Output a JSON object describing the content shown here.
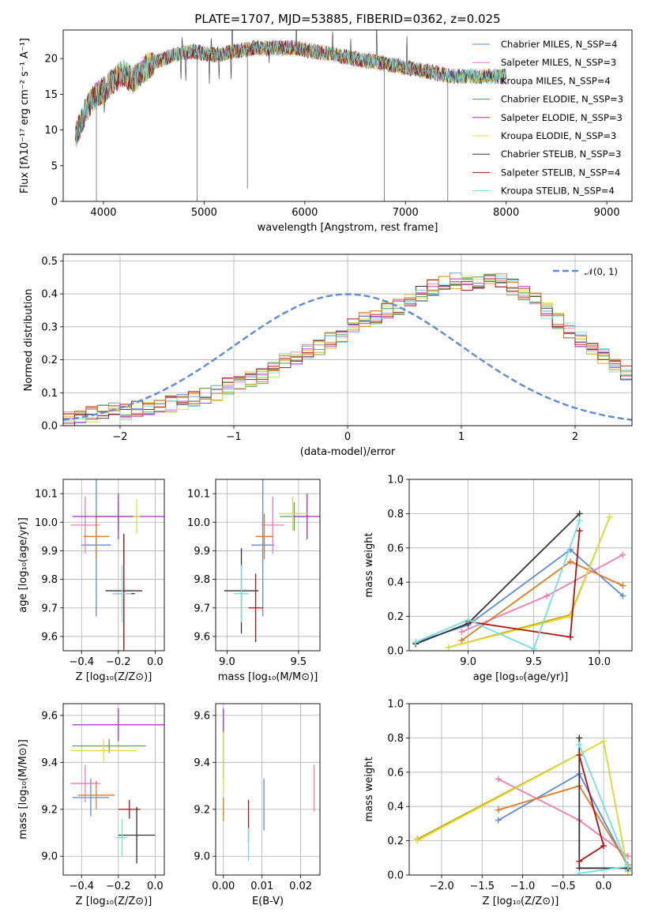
{
  "colors": {
    "Chabrier MILES": "#5b8bd8",
    "Salpeter MILES": "#f07ab0",
    "Kroupa MILES": "#d8a600",
    "Chabrier ELODIE": "#5aa05a",
    "Salpeter ELODIE": "#a030c0",
    "Kroupa ELODIE": "#d8e040",
    "Chabrier STELIB": "#333333",
    "Salpeter STELIB": "#b01010",
    "Kroupa STELIB": "#70e0e0",
    "extra_orange": "#e07a20",
    "normal": "#5b8bd8"
  },
  "chart_data": [
    {
      "type": "line",
      "title": "PLATE=1707, MJD=53885, FIBERID=0362, z=0.025",
      "xlabel": "wavelength [Angstrom, rest frame]",
      "ylabel": "Flux [fλ10⁻¹⁷ erg cm⁻² s⁻¹ A⁻¹]",
      "xlim": [
        3600,
        9250
      ],
      "ylim": [
        0,
        24
      ],
      "xticks": [
        "4000",
        "5000",
        "6000",
        "7000",
        "8000",
        "9000"
      ],
      "yticks": [
        "0",
        "5",
        "10",
        "15",
        "20"
      ],
      "legend_position": "top-right",
      "legend": [
        "Chabrier MILES, N_SSP=4",
        "Salpeter MILES, N_SSP=3",
        "Kroupa MILES, N_SSP=4",
        "Chabrier ELODIE, N_SSP=3",
        "Salpeter ELODIE, N_SSP=3",
        "Kroupa ELODIE, N_SSP=3",
        "Chabrier STELIB, N_SSP=3",
        "Salpeter STELIB, N_SSP=4",
        "Kroupa STELIB, N_SSP=4"
      ],
      "continuum": {
        "x": [
          3720,
          3800,
          3900,
          4000,
          4100,
          4200,
          4300,
          4400,
          4500,
          4700,
          4900,
          5100,
          5300,
          5500,
          5700,
          5900,
          6100,
          6300,
          6500,
          6700,
          6900,
          7100,
          7300,
          7450
        ],
        "y": [
          9,
          12,
          14.5,
          15.5,
          17,
          18,
          17,
          18.5,
          19.5,
          20.5,
          21,
          20.5,
          21,
          21.5,
          21.5,
          21.5,
          21,
          20.5,
          20,
          19.5,
          19,
          18.5,
          18,
          17.5
        ]
      },
      "dips": [
        {
          "x": 3930,
          "y": 0
        },
        {
          "x": 4930,
          "y": 0
        },
        {
          "x": 5430,
          "y": 1.8
        },
        {
          "x": 6790,
          "y": 0
        },
        {
          "x": 7420,
          "y": 0
        }
      ]
    },
    {
      "type": "bar",
      "xlabel": "(data-model)/error",
      "ylabel": "Normed distribution",
      "xlim": [
        -2.5,
        2.5
      ],
      "ylim": [
        0,
        0.52
      ],
      "xticks": [
        "−2",
        "−1",
        "0",
        "1",
        "2"
      ],
      "yticks": [
        "0.0",
        "0.1",
        "0.2",
        "0.3",
        "0.4",
        "0.5"
      ],
      "grid": true,
      "legend_position": "top-right",
      "legend": [
        "𝒩(0, 1)"
      ],
      "bin_width": 0.1,
      "bin_start": -2.5,
      "histogram_values": [
        0.02,
        0.025,
        0.035,
        0.04,
        0.045,
        0.04,
        0.05,
        0.055,
        0.06,
        0.065,
        0.07,
        0.08,
        0.09,
        0.1,
        0.12,
        0.13,
        0.14,
        0.15,
        0.17,
        0.2,
        0.21,
        0.23,
        0.24,
        0.26,
        0.27,
        0.3,
        0.32,
        0.33,
        0.35,
        0.36,
        0.38,
        0.4,
        0.42,
        0.43,
        0.44,
        0.43,
        0.44,
        0.45,
        0.44,
        0.42,
        0.4,
        0.38,
        0.35,
        0.32,
        0.29,
        0.26,
        0.24,
        0.21,
        0.18,
        0.16,
        0.14,
        0.13,
        0.11,
        0.1,
        0.09,
        0.08,
        0.07,
        0.06,
        0.05,
        0.04,
        0.04,
        0.035,
        0.03,
        0.03,
        0.025
      ]
    },
    {
      "type": "scatter",
      "xlabel": "Z [log₁₀(Z/Z⊙)]",
      "ylabel": "age  [log₁₀(age/yr)]",
      "xlim": [
        -0.5,
        0.05
      ],
      "ylim": [
        9.55,
        10.15
      ],
      "xticks": [
        "−0.4",
        "−0.2",
        "0.0"
      ],
      "yticks": [
        "9.6",
        "9.7",
        "9.8",
        "9.9",
        "10.0",
        "10.1"
      ],
      "grid": true,
      "points": [
        {
          "name": "Chabrier MILES",
          "x": -0.32,
          "y": 9.92,
          "xerr": 0.08,
          "yerr": 0.25
        },
        {
          "name": "Salpeter MILES",
          "x": -0.38,
          "y": 9.99,
          "xerr": 0.08,
          "yerr": 0.1
        },
        {
          "name": "extra_orange",
          "x": -0.32,
          "y": 9.95,
          "xerr": 0.07,
          "yerr": 0.08
        },
        {
          "name": "Chabrier ELODIE",
          "x": -0.2,
          "y": 10.02,
          "xerr": 0.12,
          "yerr": 0.05
        },
        {
          "name": "Salpeter ELODIE",
          "x": -0.2,
          "y": 10.02,
          "xerr": 0.25,
          "yerr": 0.08
        },
        {
          "name": "Kroupa ELODIE",
          "x": -0.1,
          "y": 10.02,
          "xerr": 0.02,
          "yerr": 0.06
        },
        {
          "name": "Chabrier STELIB",
          "x": -0.17,
          "y": 9.76,
          "xerr": 0.1,
          "yerr": 0.2
        },
        {
          "name": "Salpeter STELIB",
          "x": -0.17,
          "y": 9.75,
          "xerr": 0.06,
          "yerr": 0.2
        },
        {
          "name": "Kroupa STELIB",
          "x": -0.18,
          "y": 9.75,
          "xerr": 0.05,
          "yerr": 0.1
        }
      ]
    },
    {
      "type": "scatter",
      "xlabel": "mass [log₁₀(M/M⊙)]",
      "ylabel": "",
      "xlim": [
        8.92,
        9.65
      ],
      "ylim": [
        9.55,
        10.15
      ],
      "xticks": [
        "9.0",
        "9.5"
      ],
      "yticks": [
        "9.6",
        "9.7",
        "9.8",
        "9.9",
        "10.0",
        "10.1"
      ],
      "grid": true,
      "points": [
        {
          "name": "Chabrier MILES",
          "x": 9.25,
          "y": 9.92,
          "xerr": 0.08,
          "yerr": 0.25
        },
        {
          "name": "Salpeter MILES",
          "x": 9.32,
          "y": 9.99,
          "xerr": 0.08,
          "yerr": 0.1
        },
        {
          "name": "extra_orange",
          "x": 9.26,
          "y": 9.95,
          "xerr": 0.06,
          "yerr": 0.08
        },
        {
          "name": "Chabrier ELODIE",
          "x": 9.47,
          "y": 10.02,
          "xerr": 0.1,
          "yerr": 0.05
        },
        {
          "name": "Salpeter ELODIE",
          "x": 9.56,
          "y": 10.02,
          "xerr": 0.1,
          "yerr": 0.08
        },
        {
          "name": "Kroupa ELODIE",
          "x": 9.46,
          "y": 10.03,
          "xerr": 0.1,
          "yerr": 0.06
        },
        {
          "name": "Chabrier STELIB",
          "x": 9.1,
          "y": 9.76,
          "xerr": 0.12,
          "yerr": 0.15
        },
        {
          "name": "Salpeter STELIB",
          "x": 9.2,
          "y": 9.7,
          "xerr": 0.05,
          "yerr": 0.12
        },
        {
          "name": "Kroupa STELIB",
          "x": 9.1,
          "y": 9.75,
          "xerr": 0.05,
          "yerr": 0.1
        }
      ]
    },
    {
      "type": "line",
      "xlabel": "age  [log₁₀(age/yr)]",
      "ylabel": "mass weight",
      "xlim": [
        8.55,
        10.25
      ],
      "ylim": [
        0,
        1.0
      ],
      "xticks": [
        "9.0",
        "9.5",
        "10.0"
      ],
      "yticks": [
        "0.0",
        "0.2",
        "0.4",
        "0.6",
        "0.8",
        "1.0"
      ],
      "grid": true,
      "series": [
        {
          "name": "Chabrier MILES",
          "x": [
            8.6,
            9.0,
            9.78,
            10.18
          ],
          "y": [
            0.05,
            0.15,
            0.59,
            0.32
          ]
        },
        {
          "name": "Salpeter MILES",
          "x": [
            8.95,
            9.6,
            10.18
          ],
          "y": [
            0.11,
            0.32,
            0.56
          ]
        },
        {
          "name": "extra_orange",
          "x": [
            8.95,
            9.78,
            10.18
          ],
          "y": [
            0.06,
            0.52,
            0.38
          ]
        },
        {
          "name": "Kroupa MILES",
          "x": [
            8.85,
            9.78,
            10.08
          ],
          "y": [
            0.02,
            0.21,
            0.78
          ]
        },
        {
          "name": "Kroupa ELODIE",
          "x": [
            8.85,
            9.78,
            10.08
          ],
          "y": [
            0.02,
            0.2,
            0.78
          ]
        },
        {
          "name": "Chabrier STELIB",
          "x": [
            8.6,
            9.0,
            9.85
          ],
          "y": [
            0.04,
            0.16,
            0.8
          ]
        },
        {
          "name": "Salpeter STELIB",
          "x": [
            9.0,
            9.78,
            9.85
          ],
          "y": [
            0.17,
            0.08,
            0.7
          ]
        },
        {
          "name": "Kroupa STELIB",
          "x": [
            8.6,
            9.0,
            9.5,
            9.85
          ],
          "y": [
            0.05,
            0.18,
            0.01,
            0.76
          ]
        }
      ]
    },
    {
      "type": "scatter",
      "xlabel": "Z [log₁₀(Z/Z⊙)]",
      "ylabel": "mass [log₁₀(M/M⊙)]",
      "xlim": [
        -0.5,
        0.05
      ],
      "ylim": [
        8.92,
        9.65
      ],
      "xticks": [
        "−0.4",
        "−0.2",
        "0.0"
      ],
      "yticks": [
        "9.0",
        "9.2",
        "9.4",
        "9.6"
      ],
      "grid": true,
      "points": [
        {
          "name": "Chabrier MILES",
          "x": -0.35,
          "y": 9.25,
          "xerr": 0.1,
          "yerr": 0.08
        },
        {
          "name": "Salpeter MILES",
          "x": -0.38,
          "y": 9.31,
          "xerr": 0.08,
          "yerr": 0.08
        },
        {
          "name": "extra_orange",
          "x": -0.32,
          "y": 9.26,
          "xerr": 0.1,
          "yerr": 0.06
        },
        {
          "name": "Chabrier ELODIE",
          "x": -0.25,
          "y": 9.47,
          "xerr": 0.2,
          "yerr": 0.03
        },
        {
          "name": "Salpeter ELODIE",
          "x": -0.2,
          "y": 9.56,
          "xerr": 0.25,
          "yerr": 0.07
        },
        {
          "name": "Kroupa ELODIE",
          "x": -0.28,
          "y": 9.45,
          "xerr": 0.18,
          "yerr": 0.05
        },
        {
          "name": "Chabrier STELIB",
          "x": -0.1,
          "y": 9.09,
          "xerr": 0.1,
          "yerr": 0.12
        },
        {
          "name": "Salpeter STELIB",
          "x": -0.14,
          "y": 9.2,
          "xerr": 0.06,
          "yerr": 0.04
        },
        {
          "name": "Kroupa STELIB",
          "x": -0.18,
          "y": 9.08,
          "xerr": 0.03,
          "yerr": 0.08
        }
      ]
    },
    {
      "type": "scatter",
      "xlabel": "E(B-V)",
      "ylabel": "",
      "xlim": [
        -0.002,
        0.025
      ],
      "ylim": [
        8.92,
        9.65
      ],
      "xticks": [
        "0.00",
        "0.01",
        "0.02"
      ],
      "yticks": [
        "9.0",
        "9.2",
        "9.4",
        "9.6"
      ],
      "grid": true,
      "points": [
        {
          "name": "Salpeter ELODIE",
          "x": 0.0,
          "y": 9.48,
          "xerr": 0,
          "yerr": 0.15
        },
        {
          "name": "Kroupa ELODIE",
          "x": 0.0,
          "y": 9.4,
          "xerr": 0,
          "yerr": 0.13
        },
        {
          "name": "extra_orange",
          "x": 0.0,
          "y": 9.2,
          "xerr": 0,
          "yerr": 0.05
        },
        {
          "name": "Salpeter STELIB",
          "x": 0.0065,
          "y": 9.15,
          "xerr": 0,
          "yerr": 0.09
        },
        {
          "name": "Kroupa STELIB",
          "x": 0.0065,
          "y": 9.05,
          "xerr": 0,
          "yerr": 0.07
        },
        {
          "name": "Chabrier MILES",
          "x": 0.0105,
          "y": 9.22,
          "xerr": 0,
          "yerr": 0.11
        },
        {
          "name": "Salpeter MILES",
          "x": 0.0235,
          "y": 9.29,
          "xerr": 0,
          "yerr": 0.1
        }
      ]
    },
    {
      "type": "line",
      "xlabel": "Z [log₁₀(Z/Z⊙)]",
      "ylabel": "mass weight",
      "xlim": [
        -2.4,
        0.35
      ],
      "ylim": [
        0,
        1.0
      ],
      "xticks": [
        "−2.0",
        "−1.5",
        "−1.0",
        "−0.5",
        "0.0"
      ],
      "yticks": [
        "0.0",
        "0.2",
        "0.4",
        "0.6",
        "0.8",
        "1.0"
      ],
      "grid": true,
      "series": [
        {
          "name": "Chabrier MILES",
          "x": [
            -1.3,
            -0.3,
            0.3,
            0.3
          ],
          "y": [
            0.32,
            0.59,
            0.05,
            0.03
          ]
        },
        {
          "name": "Salpeter MILES",
          "x": [
            -1.3,
            -0.3,
            0.3
          ],
          "y": [
            0.56,
            0.32,
            0.11
          ]
        },
        {
          "name": "extra_orange",
          "x": [
            -1.3,
            -0.3,
            0.3
          ],
          "y": [
            0.38,
            0.52,
            0.06
          ]
        },
        {
          "name": "Kroupa MILES",
          "x": [
            -2.3,
            0.0,
            0.3
          ],
          "y": [
            0.21,
            0.78,
            0.02
          ]
        },
        {
          "name": "Kroupa ELODIE",
          "x": [
            -2.3,
            0.0,
            0.3
          ],
          "y": [
            0.2,
            0.78,
            0.02
          ]
        },
        {
          "name": "Chabrier STELIB",
          "x": [
            -0.3,
            -0.3,
            0.3
          ],
          "y": [
            0.8,
            0.04,
            0.04
          ]
        },
        {
          "name": "Salpeter STELIB",
          "x": [
            -0.3,
            0.0,
            -0.3
          ],
          "y": [
            0.08,
            0.17,
            0.7
          ]
        },
        {
          "name": "Kroupa STELIB",
          "x": [
            -0.3,
            0.3,
            -0.3
          ],
          "y": [
            0.76,
            0.05,
            0.01
          ]
        }
      ]
    }
  ]
}
